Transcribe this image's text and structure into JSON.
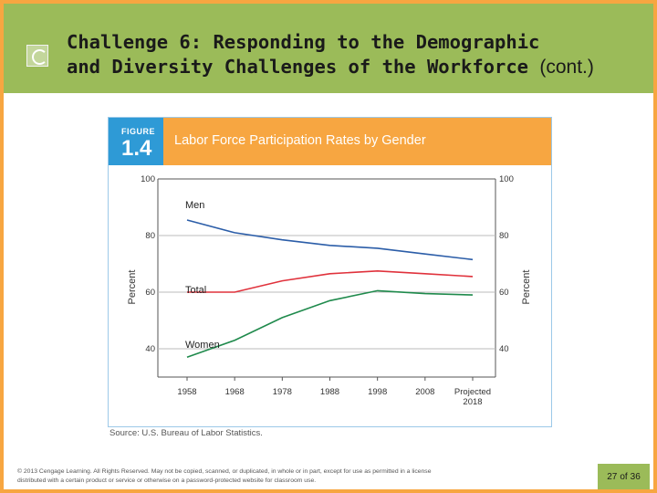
{
  "slide": {
    "title_prefix": "Challenge 6:",
    "title_line1_rest": "Responding to the Demographic",
    "title_line2": "and Diversity Challenges of the Workforce",
    "title_suffix": "(cont.)",
    "copyright": "© 2013 Cengage Learning. All Rights Reserved. May not be copied, scanned, or duplicated, in whole or in part, except for use as permitted in a license distributed with a certain product or service or otherwise on a password-protected website for classroom use.",
    "page_current": "27",
    "page_of": "of",
    "page_total": "36"
  },
  "figure": {
    "label": "FIGURE",
    "number": "1.4",
    "source": "Source: U.S. Bureau of Labor Statistics."
  },
  "colors": {
    "men": "#2b5da8",
    "total": "#e0323c",
    "women": "#1f8a4c",
    "accent_orange": "#f7a641",
    "accent_blue": "#2e9ad6",
    "header_green": "#9bbb59"
  },
  "chart_data": {
    "type": "line",
    "title": "Labor Force Participation Rates by Gender",
    "ylabel": "Percent",
    "ylabel_right": "Percent",
    "xlabel": "",
    "ylim": [
      30,
      100
    ],
    "yticks": [
      40,
      60,
      80,
      100
    ],
    "categories": [
      "1958",
      "1968",
      "1978",
      "1988",
      "1998",
      "2008",
      "Projected 2018"
    ],
    "x_labels": [
      [
        "1958"
      ],
      [
        "1968"
      ],
      [
        "1978"
      ],
      [
        "1988"
      ],
      [
        "1998"
      ],
      [
        "2008"
      ],
      [
        "Projected",
        "2018"
      ]
    ],
    "grid": "horizontal at 60 and 80",
    "legend": "inline series labels",
    "series": [
      {
        "name": "Men",
        "values": [
          85.5,
          81,
          78.5,
          76.5,
          75.5,
          73.5,
          71.5
        ]
      },
      {
        "name": "Total",
        "values": [
          60,
          60,
          64,
          66.5,
          67.5,
          66.5,
          65.5
        ]
      },
      {
        "name": "Women",
        "values": [
          37,
          43,
          51,
          57,
          60.5,
          59.5,
          59
        ]
      }
    ]
  }
}
